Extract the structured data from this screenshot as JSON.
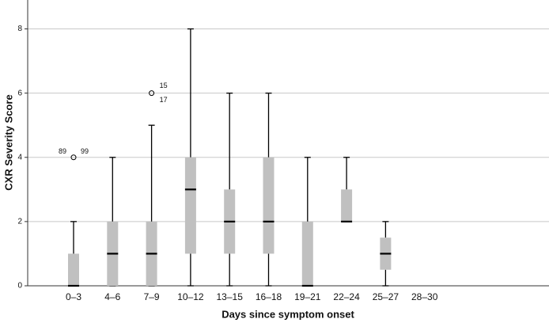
{
  "chart_data": {
    "type": "box",
    "x_label": "Days since symptom onset",
    "y_label": "CXR Severity Score",
    "categories": [
      "0–3",
      "4–6",
      "7–9",
      "10–12",
      "13–15",
      "16–18",
      "19–21",
      "22–24",
      "25–27",
      "28–30"
    ],
    "boxes": [
      {
        "min": 0,
        "q1": 0,
        "median": 0,
        "q3": 1,
        "max": 2,
        "outliers": [
          {
            "value": 4,
            "labels": [
              "89",
              "99"
            ]
          }
        ]
      },
      {
        "min": 0,
        "q1": 0,
        "median": 1,
        "q3": 2,
        "max": 4,
        "outliers": []
      },
      {
        "min": 0,
        "q1": 0,
        "median": 1,
        "q3": 2,
        "max": 5,
        "outliers": [
          {
            "value": 6,
            "labels": [
              "15",
              "17"
            ]
          }
        ]
      },
      {
        "min": 0,
        "q1": 1,
        "median": 3,
        "q3": 4,
        "max": 8,
        "outliers": []
      },
      {
        "min": 0,
        "q1": 1,
        "median": 2,
        "q3": 3,
        "max": 6,
        "outliers": []
      },
      {
        "min": 0,
        "q1": 1,
        "median": 2,
        "q3": 4,
        "max": 6,
        "outliers": []
      },
      {
        "min": 0,
        "q1": 0,
        "median": 0,
        "q3": 2,
        "max": 4,
        "outliers": []
      },
      {
        "min": 2,
        "q1": 2,
        "median": 2,
        "q3": 3,
        "max": 4,
        "outliers": []
      },
      {
        "min": 0,
        "q1": 0.5,
        "median": 1,
        "q3": 1.5,
        "max": 2,
        "outliers": []
      },
      null
    ],
    "color": "#c0c0c0",
    "ylim": [
      0,
      8.9
    ],
    "yticks": [
      0,
      2,
      4,
      6,
      8
    ],
    "grid": true
  }
}
